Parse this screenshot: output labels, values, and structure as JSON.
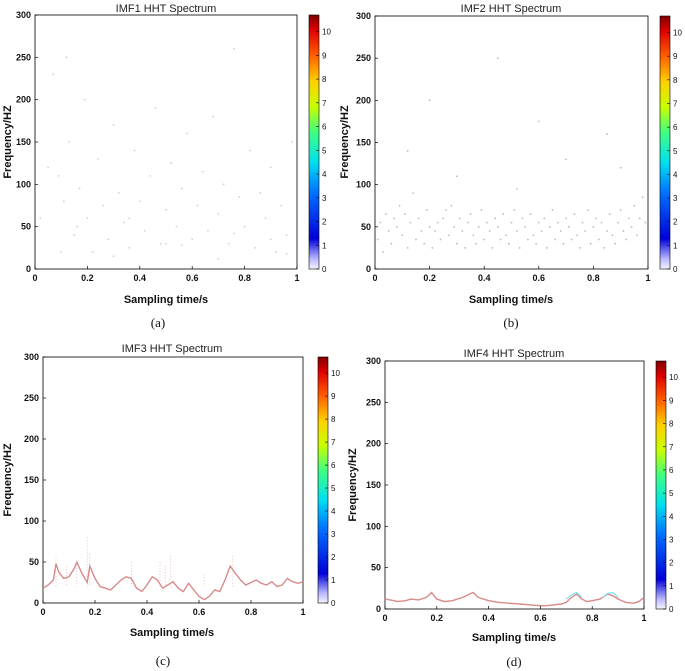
{
  "chart_data": [
    {
      "type": "scatter",
      "panel": "(a)",
      "title": "IMF1 HHT Spectrum",
      "xlabel": "Sampling time/s",
      "ylabel": "Frequency/HZ",
      "xlim": [
        0,
        1
      ],
      "ylim": [
        0,
        300
      ],
      "xticks": [
        "0",
        "0.2",
        "0.4",
        "0.6",
        "0.8",
        "1"
      ],
      "yticks": [
        "0",
        "50",
        "100",
        "150",
        "200",
        "250",
        "300"
      ],
      "colorbar_ticks": [
        "0",
        "1",
        "2",
        "3",
        "4",
        "5",
        "6",
        "7",
        "8",
        "9",
        "10"
      ],
      "colorbar_max": 10.7,
      "points": [
        [
          0.02,
          60
        ],
        [
          0.05,
          120
        ],
        [
          0.07,
          230
        ],
        [
          0.09,
          110
        ],
        [
          0.11,
          80
        ],
        [
          0.12,
          250
        ],
        [
          0.13,
          150
        ],
        [
          0.15,
          40
        ],
        [
          0.17,
          95
        ],
        [
          0.19,
          200
        ],
        [
          0.2,
          60
        ],
        [
          0.22,
          20
        ],
        [
          0.24,
          130
        ],
        [
          0.26,
          75
        ],
        [
          0.28,
          35
        ],
        [
          0.3,
          170
        ],
        [
          0.32,
          90
        ],
        [
          0.34,
          55
        ],
        [
          0.36,
          25
        ],
        [
          0.38,
          140
        ],
        [
          0.4,
          80
        ],
        [
          0.42,
          45
        ],
        [
          0.44,
          110
        ],
        [
          0.46,
          190
        ],
        [
          0.48,
          30
        ],
        [
          0.5,
          70
        ],
        [
          0.52,
          125
        ],
        [
          0.54,
          50
        ],
        [
          0.56,
          95
        ],
        [
          0.58,
          160
        ],
        [
          0.6,
          35
        ],
        [
          0.62,
          75
        ],
        [
          0.64,
          115
        ],
        [
          0.66,
          45
        ],
        [
          0.68,
          180
        ],
        [
          0.7,
          65
        ],
        [
          0.72,
          100
        ],
        [
          0.74,
          30
        ],
        [
          0.76,
          260
        ],
        [
          0.78,
          85
        ],
        [
          0.8,
          50
        ],
        [
          0.82,
          140
        ],
        [
          0.84,
          25
        ],
        [
          0.86,
          90
        ],
        [
          0.88,
          60
        ],
        [
          0.9,
          120
        ],
        [
          0.92,
          20
        ],
        [
          0.94,
          75
        ],
        [
          0.96,
          40
        ],
        [
          0.98,
          150
        ],
        [
          0.1,
          20
        ],
        [
          0.3,
          15
        ],
        [
          0.5,
          30
        ],
        [
          0.7,
          12
        ],
        [
          0.9,
          35
        ],
        [
          0.16,
          50
        ],
        [
          0.36,
          60
        ],
        [
          0.56,
          28
        ],
        [
          0.76,
          42
        ],
        [
          0.96,
          18
        ]
      ],
      "points_color": "#cfcfe4"
    },
    {
      "type": "scatter",
      "panel": "(b)",
      "title": "IMF2 HHT Spectrum",
      "xlabel": "Sampling time/s",
      "ylabel": "Frequency/HZ",
      "xlim": [
        0,
        1
      ],
      "ylim": [
        0,
        300
      ],
      "xticks": [
        "0",
        "0.2",
        "0.4",
        "0.6",
        "0.8",
        "1"
      ],
      "yticks": [
        "0",
        "50",
        "100",
        "150",
        "200",
        "250",
        "300"
      ],
      "colorbar_ticks": [
        "0",
        "1",
        "2",
        "3",
        "4",
        "5",
        "6",
        "7",
        "8",
        "9",
        "10"
      ],
      "colorbar_max": 10.7,
      "points": [
        [
          0.01,
          35
        ],
        [
          0.02,
          55
        ],
        [
          0.03,
          20
        ],
        [
          0.04,
          65
        ],
        [
          0.05,
          45
        ],
        [
          0.06,
          30
        ],
        [
          0.07,
          60
        ],
        [
          0.08,
          50
        ],
        [
          0.09,
          75
        ],
        [
          0.1,
          40
        ],
        [
          0.11,
          65
        ],
        [
          0.12,
          25
        ],
        [
          0.13,
          55
        ],
        [
          0.14,
          90
        ],
        [
          0.15,
          35
        ],
        [
          0.16,
          60
        ],
        [
          0.17,
          45
        ],
        [
          0.18,
          30
        ],
        [
          0.19,
          70
        ],
        [
          0.2,
          50
        ],
        [
          0.21,
          25
        ],
        [
          0.22,
          45
        ],
        [
          0.23,
          55
        ],
        [
          0.24,
          35
        ],
        [
          0.25,
          60
        ],
        [
          0.26,
          70
        ],
        [
          0.27,
          40
        ],
        [
          0.28,
          75
        ],
        [
          0.29,
          50
        ],
        [
          0.3,
          30
        ],
        [
          0.31,
          60
        ],
        [
          0.32,
          45
        ],
        [
          0.33,
          25
        ],
        [
          0.34,
          55
        ],
        [
          0.35,
          65
        ],
        [
          0.36,
          40
        ],
        [
          0.37,
          30
        ],
        [
          0.38,
          50
        ],
        [
          0.39,
          70
        ],
        [
          0.4,
          35
        ],
        [
          0.41,
          55
        ],
        [
          0.42,
          45
        ],
        [
          0.43,
          25
        ],
        [
          0.44,
          60
        ],
        [
          0.45,
          50
        ],
        [
          0.46,
          35
        ],
        [
          0.47,
          65
        ],
        [
          0.48,
          40
        ],
        [
          0.49,
          30
        ],
        [
          0.5,
          55
        ],
        [
          0.51,
          70
        ],
        [
          0.52,
          45
        ],
        [
          0.53,
          25
        ],
        [
          0.54,
          60
        ],
        [
          0.55,
          50
        ],
        [
          0.56,
          35
        ],
        [
          0.57,
          65
        ],
        [
          0.58,
          40
        ],
        [
          0.59,
          30
        ],
        [
          0.6,
          55
        ],
        [
          0.61,
          45
        ],
        [
          0.62,
          60
        ],
        [
          0.63,
          25
        ],
        [
          0.64,
          50
        ],
        [
          0.65,
          70
        ],
        [
          0.66,
          35
        ],
        [
          0.67,
          55
        ],
        [
          0.68,
          45
        ],
        [
          0.69,
          30
        ],
        [
          0.7,
          60
        ],
        [
          0.71,
          50
        ],
        [
          0.72,
          35
        ],
        [
          0.73,
          65
        ],
        [
          0.74,
          40
        ],
        [
          0.75,
          25
        ],
        [
          0.76,
          55
        ],
        [
          0.77,
          45
        ],
        [
          0.78,
          70
        ],
        [
          0.79,
          30
        ],
        [
          0.8,
          50
        ],
        [
          0.81,
          60
        ],
        [
          0.82,
          35
        ],
        [
          0.83,
          55
        ],
        [
          0.84,
          25
        ],
        [
          0.85,
          45
        ],
        [
          0.86,
          65
        ],
        [
          0.87,
          40
        ],
        [
          0.88,
          30
        ],
        [
          0.89,
          55
        ],
        [
          0.9,
          70
        ],
        [
          0.91,
          45
        ],
        [
          0.92,
          35
        ],
        [
          0.93,
          60
        ],
        [
          0.94,
          50
        ],
        [
          0.95,
          75
        ],
        [
          0.96,
          40
        ],
        [
          0.97,
          60
        ],
        [
          0.98,
          85
        ],
        [
          0.99,
          55
        ],
        [
          0.12,
          140
        ],
        [
          0.3,
          110
        ],
        [
          0.52,
          95
        ],
        [
          0.7,
          130
        ],
        [
          0.9,
          120
        ],
        [
          0.2,
          200
        ],
        [
          0.6,
          175
        ],
        [
          0.45,
          250
        ],
        [
          0.85,
          160
        ]
      ],
      "points_color": "#cab0c8"
    },
    {
      "type": "line",
      "panel": "(c)",
      "title": "IMF3 HHT Spectrum",
      "xlabel": "Sampling time/s",
      "ylabel": "Frequency/HZ",
      "xlim": [
        0,
        1
      ],
      "ylim": [
        0,
        300
      ],
      "xticks": [
        "0",
        "0.2",
        "0.4",
        "0.6",
        "0.8",
        "1"
      ],
      "yticks": [
        "0",
        "50",
        "100",
        "150",
        "200",
        "250",
        "300"
      ],
      "colorbar_ticks": [
        "0",
        "1",
        "2",
        "3",
        "4",
        "5",
        "6",
        "7",
        "8",
        "9",
        "10"
      ],
      "colorbar_max": 10.7,
      "line_color": "#d98a8a",
      "x": [
        0,
        0.02,
        0.04,
        0.05,
        0.06,
        0.08,
        0.1,
        0.12,
        0.13,
        0.15,
        0.17,
        0.18,
        0.2,
        0.22,
        0.24,
        0.26,
        0.28,
        0.3,
        0.32,
        0.34,
        0.36,
        0.38,
        0.4,
        0.42,
        0.44,
        0.46,
        0.48,
        0.5,
        0.52,
        0.54,
        0.56,
        0.58,
        0.6,
        0.62,
        0.64,
        0.66,
        0.68,
        0.7,
        0.72,
        0.74,
        0.76,
        0.78,
        0.8,
        0.82,
        0.84,
        0.86,
        0.88,
        0.9,
        0.92,
        0.94,
        0.96,
        0.98,
        1
      ],
      "y": [
        18,
        22,
        28,
        48,
        38,
        30,
        32,
        42,
        50,
        36,
        25,
        45,
        30,
        20,
        18,
        16,
        22,
        28,
        32,
        30,
        18,
        14,
        22,
        32,
        28,
        18,
        22,
        26,
        18,
        14,
        24,
        16,
        8,
        4,
        8,
        16,
        14,
        28,
        45,
        36,
        28,
        22,
        25,
        28,
        24,
        22,
        26,
        20,
        22,
        30,
        26,
        24,
        26
      ],
      "sparks_x": [
        0.05,
        0.09,
        0.13,
        0.17,
        0.18,
        0.34,
        0.45,
        0.47,
        0.49,
        0.62,
        0.73
      ],
      "sparks_y": [
        55,
        45,
        50,
        80,
        60,
        50,
        50,
        45,
        58,
        35,
        58
      ]
    },
    {
      "type": "line",
      "panel": "(d)",
      "title": "IMF4 HHT Spectrum",
      "xlabel": "Sampling time/s",
      "ylabel": "Frequency/HZ",
      "xlim": [
        0,
        1
      ],
      "ylim": [
        0,
        300
      ],
      "xticks": [
        "0",
        "0.2",
        "0.4",
        "0.6",
        "0.8",
        "1"
      ],
      "yticks": [
        "0",
        "50",
        "100",
        "150",
        "200",
        "250",
        "300"
      ],
      "colorbar_ticks": [
        "0",
        "1",
        "2",
        "3",
        "4",
        "5",
        "6",
        "7",
        "8",
        "9",
        "10"
      ],
      "colorbar_max": 10.7,
      "line_color": "#d98a8a",
      "x": [
        0,
        0.02,
        0.05,
        0.08,
        0.1,
        0.13,
        0.16,
        0.18,
        0.2,
        0.23,
        0.26,
        0.3,
        0.34,
        0.36,
        0.4,
        0.44,
        0.48,
        0.52,
        0.56,
        0.6,
        0.62,
        0.65,
        0.68,
        0.7,
        0.72,
        0.74,
        0.76,
        0.78,
        0.8,
        0.83,
        0.86,
        0.88,
        0.9,
        0.93,
        0.96,
        0.98,
        1
      ],
      "y": [
        12,
        11,
        9,
        10,
        12,
        11,
        14,
        20,
        12,
        9,
        10,
        14,
        20,
        14,
        10,
        8,
        7,
        6,
        5,
        4,
        4,
        5,
        6,
        8,
        14,
        18,
        12,
        9,
        10,
        12,
        18,
        16,
        12,
        8,
        7,
        9,
        14
      ],
      "cyan_x": [
        0.7,
        0.72,
        0.74,
        0.76,
        0.84,
        0.86,
        0.88,
        0.9
      ],
      "cyan_y": [
        12,
        17,
        20,
        14,
        14,
        19,
        20,
        14
      ]
    }
  ],
  "captions": [
    "(a)",
    "(b)",
    "(c)",
    "(d)"
  ]
}
